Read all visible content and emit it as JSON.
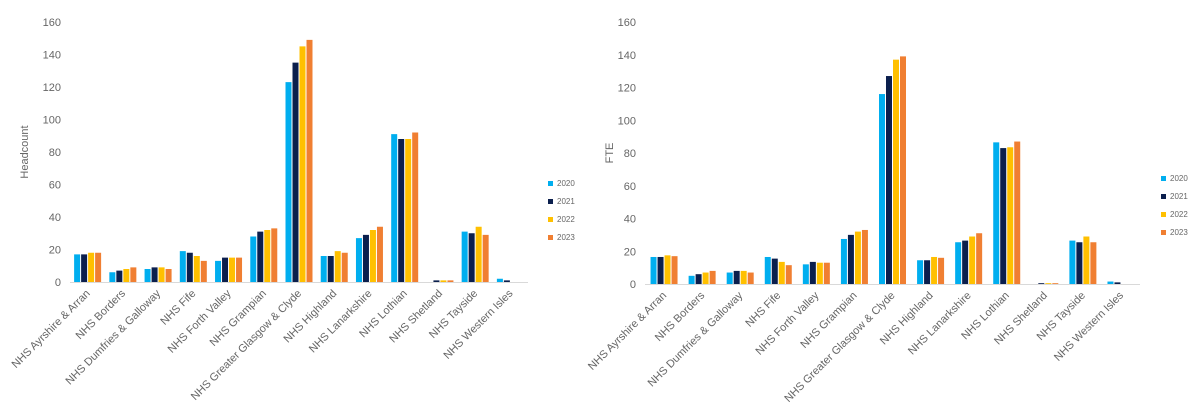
{
  "colors": {
    "2020": "#00aeef",
    "2021": "#0b1f4d",
    "2022": "#ffc000",
    "2023": "#f07f32"
  },
  "chart_data": [
    {
      "type": "bar",
      "title": "",
      "xlabel": "",
      "ylabel": "Headcount",
      "ylim": [
        0,
        160
      ],
      "yticks": [
        0,
        20,
        40,
        60,
        80,
        100,
        120,
        140,
        160
      ],
      "legend_position": "right",
      "categories": [
        "NHS Ayrshire & Arran",
        "NHS Borders",
        "NHS Dumfries & Galloway",
        "NHS Fife",
        "NHS Forth Valley",
        "NHS Grampian",
        "NHS Greater Glasgow & Clyde",
        "NHS Highland",
        "NHS Lanarkshire",
        "NHS Lothian",
        "NHS Shetland",
        "NHS Tayside",
        "NHS Western Isles"
      ],
      "series": [
        {
          "name": "2020",
          "values": [
            17,
            6,
            8,
            19,
            13,
            28,
            123,
            16,
            27,
            91,
            0,
            31,
            2
          ]
        },
        {
          "name": "2021",
          "values": [
            17,
            7,
            9,
            18,
            15,
            31,
            135,
            16,
            29,
            88,
            1,
            30,
            1
          ]
        },
        {
          "name": "2022",
          "values": [
            18,
            8,
            9,
            16,
            15,
            32,
            145,
            19,
            32,
            88,
            1,
            34,
            0
          ]
        },
        {
          "name": "2023",
          "values": [
            18,
            9,
            8,
            13,
            15,
            33,
            149,
            18,
            34,
            92,
            1,
            29,
            0
          ]
        }
      ]
    },
    {
      "type": "bar",
      "title": "",
      "xlabel": "",
      "ylabel": "FTE",
      "ylim": [
        0,
        160
      ],
      "yticks": [
        0,
        20,
        40,
        60,
        80,
        100,
        120,
        140,
        160
      ],
      "legend_position": "right",
      "categories": [
        "NHS Ayrshire & Arran",
        "NHS Borders",
        "NHS Dumfries & Galloway",
        "NHS Fife",
        "NHS Forth Valley",
        "NHS Grampian",
        "NHS Greater Glasgow & Clyde",
        "NHS Highland",
        "NHS Lanarkshire",
        "NHS Lothian",
        "NHS Shetland",
        "NHS Tayside",
        "NHS Western Isles"
      ],
      "series": [
        {
          "name": "2020",
          "values": [
            16.5,
            5,
            7,
            16.5,
            12,
            27.5,
            116,
            14.5,
            25.5,
            86.5,
            0,
            26.5,
            1.5
          ]
        },
        {
          "name": "2021",
          "values": [
            16.5,
            6,
            8,
            15.5,
            13.5,
            30,
            127,
            14.5,
            26.5,
            83,
            0.5,
            25.5,
            1
          ]
        },
        {
          "name": "2022",
          "values": [
            17.5,
            7,
            8,
            13.5,
            13,
            32,
            137,
            16.5,
            29,
            83.5,
            0.5,
            29,
            0
          ]
        },
        {
          "name": "2023",
          "values": [
            17,
            8,
            7,
            11.5,
            13,
            33,
            139,
            16,
            31,
            87,
            0.5,
            25.5,
            0
          ]
        }
      ]
    }
  ]
}
